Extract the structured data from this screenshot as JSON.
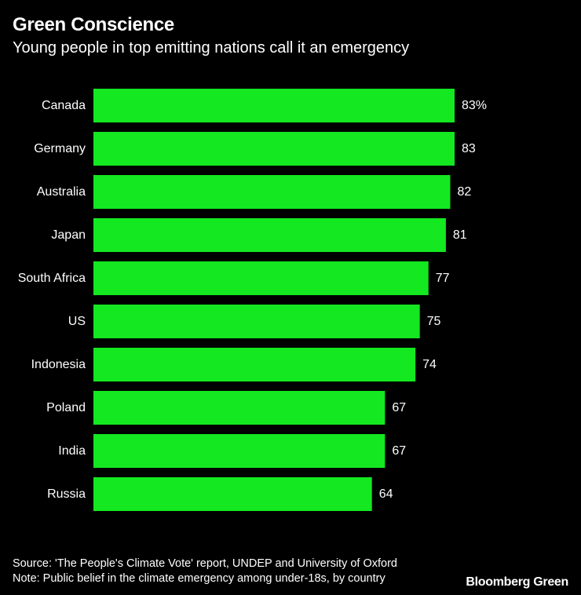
{
  "header": {
    "title": "Green Conscience",
    "subtitle": "Young people in top emitting nations call it an emergency"
  },
  "footer": {
    "source": "Source: 'The People's Climate Vote' report, UNDEP and University of Oxford",
    "note": "Note: Public belief in the climate emergency among under-18s, by country",
    "brand": "Bloomberg Green"
  },
  "colors": {
    "background": "#000000",
    "bar": "#13e820",
    "text": "#ffffff"
  },
  "chart_data": {
    "type": "bar",
    "orientation": "horizontal",
    "title": "Green Conscience",
    "subtitle": "Young people in top emitting nations call it an emergency",
    "categories": [
      "Canada",
      "Germany",
      "Australia",
      "Japan",
      "South Africa",
      "US",
      "Indonesia",
      "Poland",
      "India",
      "Russia"
    ],
    "values": [
      83,
      83,
      82,
      81,
      77,
      75,
      74,
      67,
      67,
      64
    ],
    "value_labels": [
      "83%",
      "83",
      "82",
      "81",
      "77",
      "75",
      "74",
      "67",
      "67",
      "64"
    ],
    "unit": "%",
    "xlim": [
      0,
      83
    ],
    "xlabel": "",
    "ylabel": "",
    "grid": false,
    "legend": "none"
  }
}
